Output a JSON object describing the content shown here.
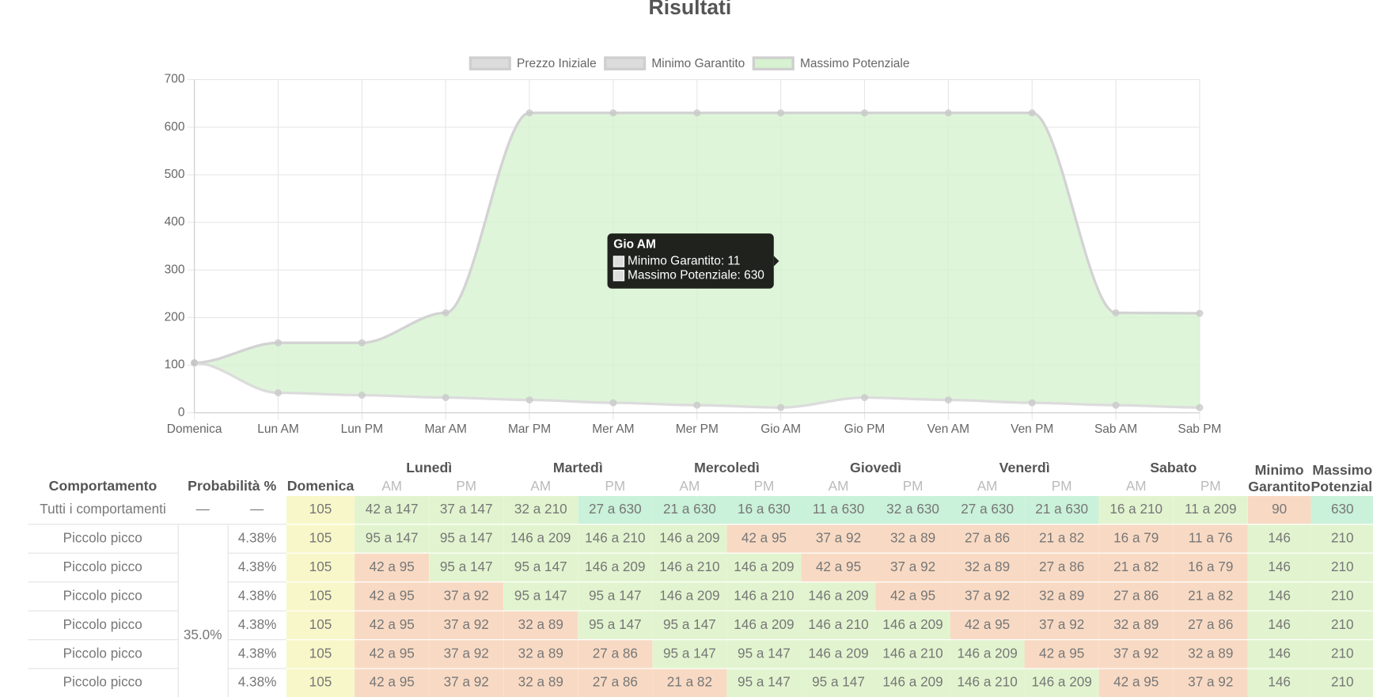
{
  "chart_data": {
    "type": "line",
    "title": "Risultati",
    "categories": [
      "Domenica",
      "Lun AM",
      "Lun PM",
      "Mar AM",
      "Mar PM",
      "Mer AM",
      "Mer PM",
      "Gio AM",
      "Gio PM",
      "Ven AM",
      "Ven PM",
      "Sab AM",
      "Sab PM"
    ],
    "series": [
      {
        "name": "Prezzo Iniziale",
        "color": "#dcdcdc",
        "values": [
          105,
          null,
          null,
          null,
          null,
          null,
          null,
          null,
          null,
          null,
          null,
          null,
          null
        ]
      },
      {
        "name": "Minimo Garantito",
        "color": "#dcdcdc",
        "values": [
          105,
          42,
          37,
          32,
          27,
          21,
          16,
          11,
          32,
          27,
          21,
          16,
          11
        ]
      },
      {
        "name": "Massimo Potenziale",
        "color": "#d6f2d0",
        "values": [
          105,
          147,
          147,
          210,
          630,
          630,
          630,
          630,
          630,
          630,
          630,
          210,
          209
        ]
      }
    ],
    "ylim": [
      0,
      700
    ],
    "yticks": [
      0,
      100,
      200,
      300,
      400,
      500,
      600,
      700
    ],
    "grid": true,
    "legend": "top",
    "tooltip": {
      "title": "Gio AM",
      "items": [
        "Minimo Garantito: 11",
        "Massimo Potenziale: 630"
      ]
    }
  },
  "table": {
    "headers": {
      "behaviour": "Comportamento",
      "probability": "Probabilità %",
      "sunday": "Domenica",
      "days": [
        "Lunedì",
        "Martedì",
        "Mercoledì",
        "Giovedì",
        "Venerdì",
        "Sabato"
      ],
      "halves": [
        "AM",
        "PM"
      ],
      "minimum": "Minimo Garantito",
      "maximum": "Massimo Potenziale"
    },
    "palette": {
      "y": "#f8f7c9",
      "m": "#e2f4cf",
      "h": "#caf1d9",
      "l": "#f8dac4"
    },
    "group_probability": "35.0%",
    "rows": [
      {
        "label": "Tutti i comportamenti",
        "probability": [
          "—",
          "—"
        ],
        "cells": [
          "105",
          "42 a 147",
          "37 a 147",
          "32 a 210",
          "27 a 630",
          "21 a 630",
          "16 a 630",
          "11 a 630",
          "32 a 630",
          "27 a 630",
          "21 a 630",
          "16 a 210",
          "11 a 209",
          "90",
          "630"
        ],
        "tones": "ymmmhhhhhhhmmlh"
      },
      {
        "label": "Piccolo picco",
        "probability": [
          "4.38%"
        ],
        "cells": [
          "105",
          "95 a 147",
          "95 a 147",
          "146 a 209",
          "146 a 210",
          "146 a 209",
          "42 a 95",
          "37 a 92",
          "32 a 89",
          "27 a 86",
          "21 a 82",
          "16 a 79",
          "11 a 76",
          "146",
          "210"
        ],
        "tones": "ymmmmmlllllllmm"
      },
      {
        "label": "Piccolo picco",
        "probability": [
          "4.38%"
        ],
        "cells": [
          "105",
          "42 a 95",
          "95 a 147",
          "95 a 147",
          "146 a 209",
          "146 a 210",
          "146 a 209",
          "42 a 95",
          "37 a 92",
          "32 a 89",
          "27 a 86",
          "21 a 82",
          "16 a 79",
          "146",
          "210"
        ],
        "tones": "ylmmmmmllllllmm"
      },
      {
        "label": "Piccolo picco",
        "probability": [
          "4.38%"
        ],
        "cells": [
          "105",
          "42 a 95",
          "37 a 92",
          "95 a 147",
          "95 a 147",
          "146 a 209",
          "146 a 210",
          "146 a 209",
          "42 a 95",
          "37 a 92",
          "32 a 89",
          "27 a 86",
          "21 a 82",
          "146",
          "210"
        ],
        "tones": "yllmmmmmlllllmm"
      },
      {
        "label": "Piccolo picco",
        "probability": [
          "4.38%"
        ],
        "cells": [
          "105",
          "42 a 95",
          "37 a 92",
          "32 a 89",
          "95 a 147",
          "95 a 147",
          "146 a 209",
          "146 a 210",
          "146 a 209",
          "42 a 95",
          "37 a 92",
          "32 a 89",
          "27 a 86",
          "146",
          "210"
        ],
        "tones": "ylllmmmmmllllmm"
      },
      {
        "label": "Piccolo picco",
        "probability": [
          "4.38%"
        ],
        "cells": [
          "105",
          "42 a 95",
          "37 a 92",
          "32 a 89",
          "27 a 86",
          "95 a 147",
          "95 a 147",
          "146 a 209",
          "146 a 210",
          "146 a 209",
          "42 a 95",
          "37 a 92",
          "32 a 89",
          "146",
          "210"
        ],
        "tones": "yllllmmmmmlllmm"
      },
      {
        "label": "Piccolo picco",
        "probability": [
          "4.38%"
        ],
        "cells": [
          "105",
          "42 a 95",
          "37 a 92",
          "32 a 89",
          "27 a 86",
          "21 a 82",
          "95 a 147",
          "95 a 147",
          "146 a 209",
          "146 a 210",
          "146 a 209",
          "42 a 95",
          "37 a 92",
          "146",
          "210"
        ],
        "tones": "ylllllmmmmmllmm"
      }
    ]
  }
}
